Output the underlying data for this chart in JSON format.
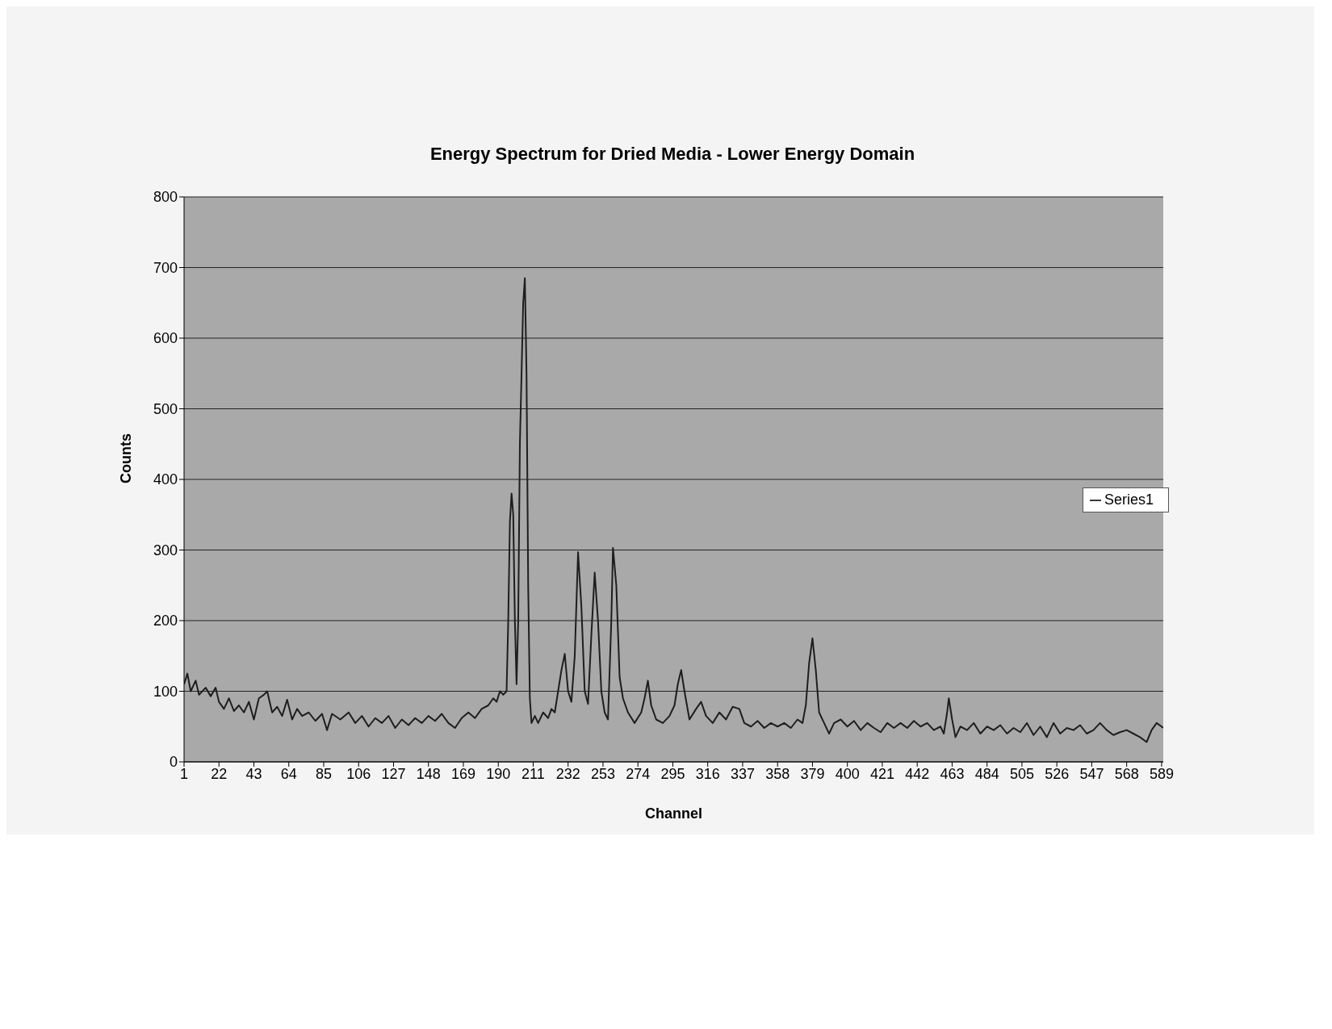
{
  "chart_data": {
    "type": "line",
    "title": "Energy Spectrum for Dried Media - Lower Energy Domain",
    "xlabel": "Channel",
    "ylabel": "Counts",
    "xlim": [
      1,
      590
    ],
    "xticks": [
      1,
      22,
      43,
      64,
      85,
      106,
      127,
      148,
      169,
      190,
      211,
      232,
      253,
      274,
      295,
      316,
      337,
      358,
      379,
      400,
      421,
      442,
      463,
      484,
      505,
      526,
      547,
      568,
      589
    ],
    "ylim": [
      0,
      800
    ],
    "yticks": [
      0,
      100,
      200,
      300,
      400,
      500,
      600,
      700,
      800
    ],
    "grid": "y",
    "legend": "right",
    "marker": "none",
    "line_style": "solid",
    "x": [
      1,
      3,
      5,
      8,
      10,
      14,
      17,
      20,
      22,
      25,
      28,
      31,
      34,
      37,
      40,
      43,
      46,
      49,
      51,
      54,
      57,
      60,
      63,
      66,
      69,
      72,
      76,
      80,
      84,
      87,
      90,
      95,
      100,
      104,
      108,
      112,
      116,
      120,
      124,
      128,
      132,
      136,
      140,
      144,
      148,
      152,
      156,
      160,
      164,
      168,
      172,
      176,
      180,
      184,
      187,
      189,
      191,
      193,
      195,
      196,
      197,
      198,
      199,
      200,
      201,
      202,
      203,
      205,
      206,
      207,
      208,
      209,
      210,
      212,
      214,
      217,
      220,
      222,
      224,
      226,
      228,
      230,
      232,
      234,
      236,
      238,
      240,
      242,
      244,
      246,
      248,
      250,
      252,
      254,
      256,
      258,
      259,
      261,
      263,
      265,
      268,
      272,
      276,
      278,
      280,
      282,
      285,
      289,
      293,
      296,
      298,
      300,
      302,
      305,
      309,
      312,
      315,
      319,
      323,
      327,
      331,
      335,
      338,
      342,
      346,
      350,
      354,
      358,
      362,
      366,
      370,
      373,
      375,
      377,
      379,
      381,
      383,
      386,
      389,
      392,
      396,
      400,
      404,
      408,
      412,
      416,
      420,
      424,
      428,
      432,
      436,
      440,
      444,
      448,
      452,
      456,
      458,
      460,
      461,
      463,
      465,
      468,
      472,
      476,
      480,
      484,
      488,
      492,
      496,
      500,
      504,
      508,
      512,
      516,
      520,
      524,
      528,
      532,
      536,
      540,
      544,
      548,
      552,
      556,
      560,
      564,
      568,
      572,
      576,
      580,
      583,
      586,
      589,
      590
    ],
    "series": [
      {
        "name": "Series1",
        "color": "#1e1e1e",
        "values": [
          110,
          125,
          100,
          115,
          95,
          105,
          93,
          105,
          85,
          75,
          90,
          72,
          80,
          70,
          85,
          60,
          90,
          95,
          100,
          70,
          78,
          65,
          88,
          60,
          75,
          65,
          70,
          58,
          68,
          45,
          68,
          60,
          70,
          55,
          65,
          50,
          62,
          55,
          65,
          48,
          60,
          52,
          62,
          55,
          65,
          58,
          68,
          55,
          48,
          62,
          70,
          62,
          75,
          80,
          90,
          85,
          100,
          95,
          100,
          200,
          340,
          380,
          350,
          200,
          110,
          200,
          450,
          650,
          685,
          550,
          250,
          90,
          55,
          65,
          55,
          70,
          62,
          75,
          70,
          100,
          130,
          153,
          100,
          85,
          150,
          297,
          220,
          100,
          82,
          180,
          268,
          200,
          100,
          70,
          60,
          200,
          303,
          250,
          120,
          90,
          70,
          55,
          70,
          90,
          115,
          80,
          60,
          55,
          65,
          80,
          110,
          130,
          100,
          60,
          75,
          85,
          65,
          55,
          70,
          60,
          78,
          75,
          55,
          50,
          58,
          48,
          55,
          50,
          55,
          48,
          60,
          55,
          80,
          140,
          175,
          130,
          70,
          55,
          40,
          55,
          60,
          50,
          58,
          45,
          55,
          48,
          42,
          55,
          48,
          55,
          48,
          58,
          50,
          55,
          45,
          50,
          40,
          70,
          90,
          60,
          35,
          50,
          45,
          55,
          40,
          50,
          45,
          52,
          40,
          48,
          42,
          55,
          38,
          50,
          35,
          55,
          40,
          48,
          45,
          52,
          40,
          45,
          55,
          45,
          38,
          42,
          45,
          40,
          35,
          28,
          45,
          55,
          50,
          48
        ]
      }
    ]
  }
}
